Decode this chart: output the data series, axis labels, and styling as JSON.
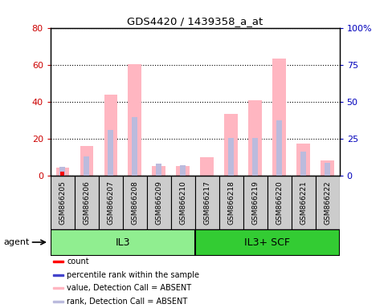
{
  "title": "GDS4420 / 1439358_a_at",
  "samples": [
    "GSM866205",
    "GSM866206",
    "GSM866207",
    "GSM866208",
    "GSM866209",
    "GSM866210",
    "GSM866217",
    "GSM866218",
    "GSM866219",
    "GSM866220",
    "GSM866221",
    "GSM866222"
  ],
  "groups": [
    {
      "label": "IL3",
      "indices": [
        0,
        1,
        2,
        3,
        4,
        5
      ],
      "color": "#90EE90"
    },
    {
      "label": "IL3+ SCF",
      "indices": [
        6,
        7,
        8,
        9,
        10,
        11
      ],
      "color": "#33CC33"
    }
  ],
  "pink_bars": [
    4.5,
    16.0,
    44.0,
    60.5,
    5.5,
    5.5,
    10.0,
    33.5,
    41.0,
    63.5,
    17.5,
    8.5
  ],
  "blue_bars_pct": [
    6.25,
    13.125,
    31.25,
    40.0,
    8.125,
    7.5,
    null,
    25.625,
    25.625,
    37.5,
    16.25,
    8.75
  ],
  "red_bars": [
    2.5,
    null,
    null,
    null,
    null,
    null,
    null,
    null,
    null,
    null,
    null,
    null
  ],
  "blue_present_bars": [
    null,
    null,
    null,
    null,
    null,
    null,
    null,
    null,
    null,
    null,
    null,
    null
  ],
  "left_ylim": [
    0,
    80
  ],
  "right_ylim": [
    0,
    100
  ],
  "left_yticks": [
    0,
    20,
    40,
    60,
    80
  ],
  "right_yticks": [
    0,
    25,
    50,
    75,
    100
  ],
  "right_yticklabels": [
    "0",
    "25",
    "50",
    "75",
    "100%"
  ],
  "left_yticklabels": [
    "0",
    "20",
    "40",
    "60",
    "80"
  ],
  "pink_color": "#FFB6C1",
  "blue_color": "#BBBBDD",
  "red_color": "#FF0000",
  "dark_blue_color": "#4444CC",
  "legend_items": [
    {
      "color": "#FF0000",
      "label": "count"
    },
    {
      "color": "#4444CC",
      "label": "percentile rank within the sample"
    },
    {
      "color": "#FFB6C1",
      "label": "value, Detection Call = ABSENT"
    },
    {
      "color": "#BBBBDD",
      "label": "rank, Detection Call = ABSENT"
    }
  ],
  "agent_label": "agent",
  "ylabel_left_color": "#CC0000",
  "ylabel_right_color": "#0000BB",
  "gray_box_color": "#CCCCCC",
  "bar_bg_color": "#FFFFFF"
}
